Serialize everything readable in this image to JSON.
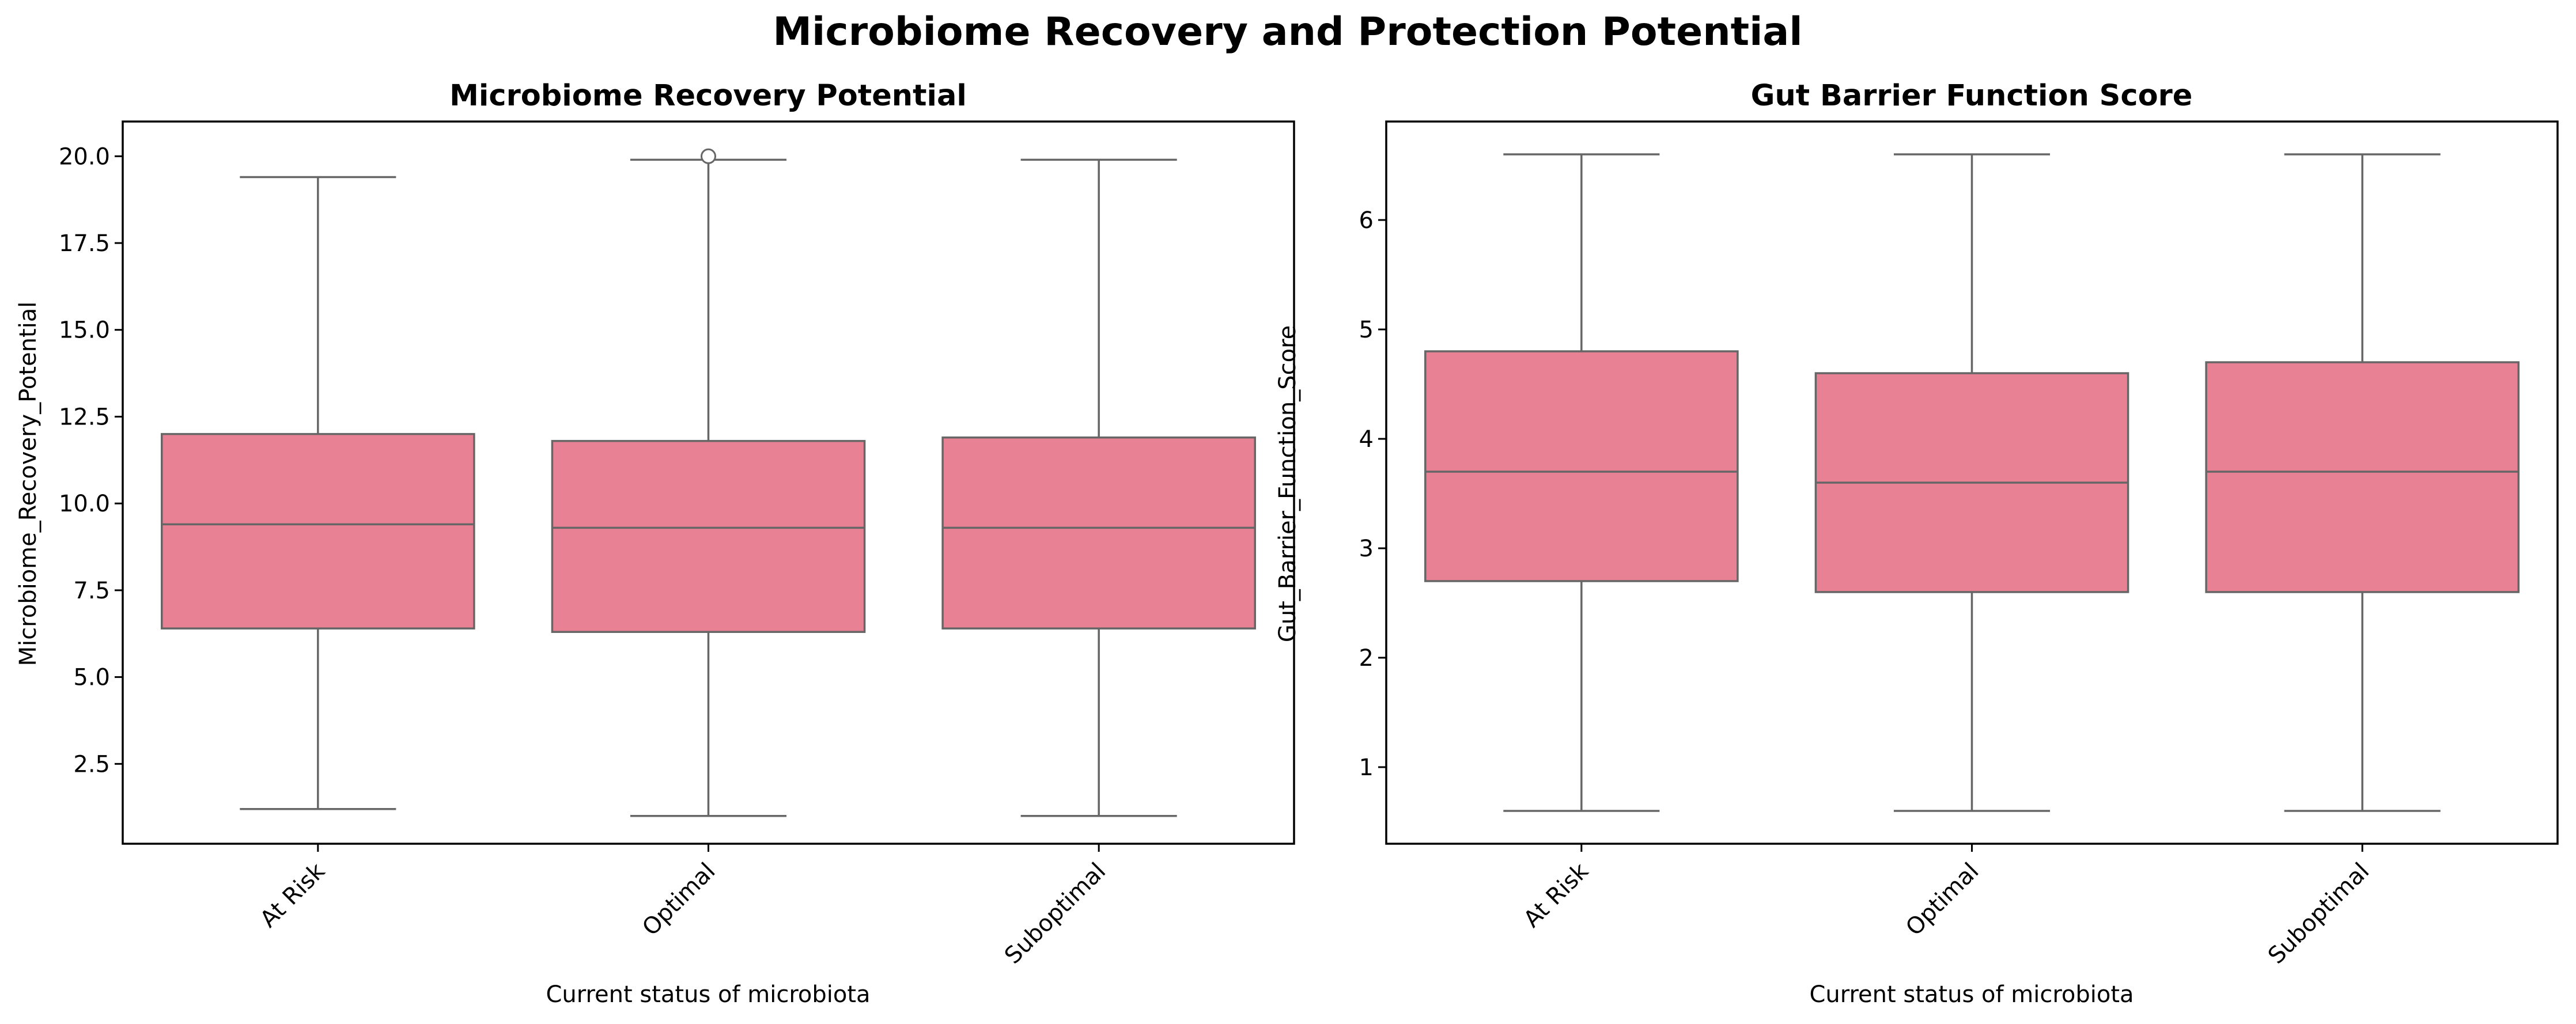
{
  "figure": {
    "suptitle": "Microbiome Recovery and Protection Potential"
  },
  "chart_data": [
    {
      "type": "box",
      "title": "Microbiome Recovery Potential",
      "xlabel": "Current status of microbiota",
      "ylabel": "Microbiome_Recovery_Potential",
      "categories": [
        "At Risk",
        "Optimal",
        "Suboptimal"
      ],
      "box_color": "#e88194",
      "line_color": "#666666",
      "ylim": [
        0.2,
        21.0
      ],
      "yticks": [
        2.5,
        5.0,
        7.5,
        10.0,
        12.5,
        15.0,
        17.5,
        20.0
      ],
      "ytick_labels": [
        "2.5",
        "5.0",
        "7.5",
        "10.0",
        "12.5",
        "15.0",
        "17.5",
        "20.0"
      ],
      "boxes": [
        {
          "category": "At Risk",
          "whisker_low": 1.2,
          "q1": 6.4,
          "median": 9.4,
          "q3": 12.0,
          "whisker_high": 19.4,
          "outliers": []
        },
        {
          "category": "Optimal",
          "whisker_low": 1.0,
          "q1": 6.3,
          "median": 9.3,
          "q3": 11.8,
          "whisker_high": 19.9,
          "outliers": [
            20.0
          ]
        },
        {
          "category": "Suboptimal",
          "whisker_low": 1.0,
          "q1": 6.4,
          "median": 9.3,
          "q3": 11.9,
          "whisker_high": 19.9,
          "outliers": []
        }
      ]
    },
    {
      "type": "box",
      "title": "Gut Barrier Function Score",
      "xlabel": "Current status of microbiota",
      "ylabel": "Gut_Barrier_Function_Score",
      "categories": [
        "At Risk",
        "Optimal",
        "Suboptimal"
      ],
      "box_color": "#e88194",
      "line_color": "#666666",
      "ylim": [
        0.3,
        6.9
      ],
      "yticks": [
        1,
        2,
        3,
        4,
        5,
        6
      ],
      "ytick_labels": [
        "1",
        "2",
        "3",
        "4",
        "5",
        "6"
      ],
      "boxes": [
        {
          "category": "At Risk",
          "whisker_low": 0.6,
          "q1": 2.7,
          "median": 3.7,
          "q3": 4.8,
          "whisker_high": 6.6,
          "outliers": []
        },
        {
          "category": "Optimal",
          "whisker_low": 0.6,
          "q1": 2.6,
          "median": 3.6,
          "q3": 4.6,
          "whisker_high": 6.6,
          "outliers": []
        },
        {
          "category": "Suboptimal",
          "whisker_low": 0.6,
          "q1": 2.6,
          "median": 3.7,
          "q3": 4.7,
          "whisker_high": 6.6,
          "outliers": []
        }
      ]
    }
  ]
}
